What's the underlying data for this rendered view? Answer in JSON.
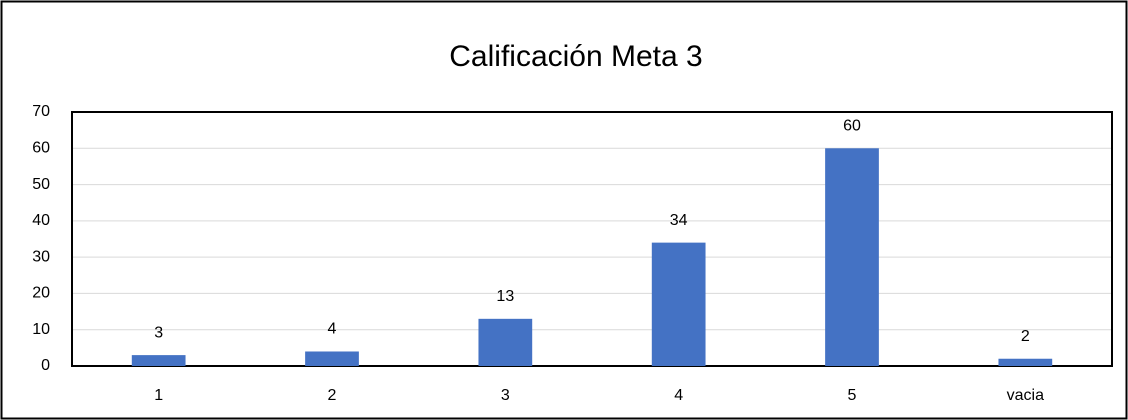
{
  "chart_data": {
    "type": "bar",
    "title": "Calificación Meta 3",
    "categories": [
      "1",
      "2",
      "3",
      "4",
      "5",
      "vacia"
    ],
    "values": [
      3,
      4,
      13,
      34,
      60,
      2
    ],
    "color": "#4472c4",
    "ylim": [
      0,
      70
    ],
    "yticks": [
      0,
      10,
      20,
      30,
      40,
      50,
      60,
      70
    ],
    "grid": true
  }
}
